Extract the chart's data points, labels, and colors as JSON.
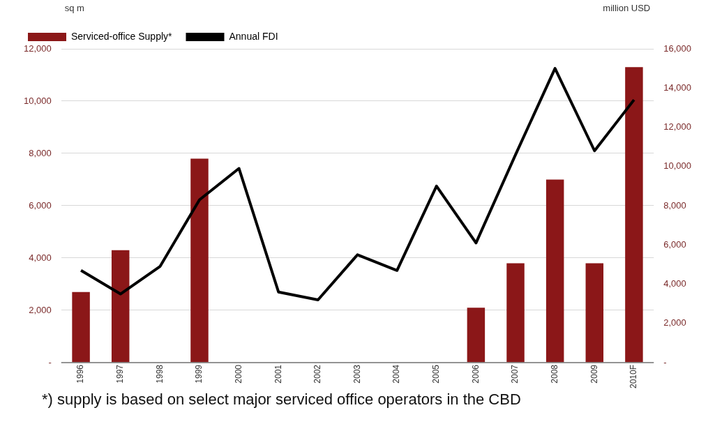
{
  "chart_data": {
    "type": "bar",
    "ylabel": "sq m",
    "y2label": "million USD",
    "categories": [
      "1996",
      "1997",
      "1998",
      "1999",
      "2000",
      "2001",
      "2002",
      "2003",
      "2004",
      "2005",
      "2006",
      "2007",
      "2008",
      "2009",
      "2010F"
    ],
    "series": [
      {
        "name": "Serviced-office Supply*",
        "color": "#8b1718",
        "values": [
          2700,
          4300,
          null,
          7800,
          null,
          null,
          null,
          null,
          null,
          null,
          2100,
          3800,
          7000,
          3800,
          11300
        ]
      },
      {
        "name": "Annual FDI",
        "type": "line",
        "axis": "y2",
        "color": "#000000",
        "values": [
          4700,
          3500,
          4900,
          8300,
          9900,
          3600,
          3200,
          5500,
          4700,
          9000,
          6100,
          10600,
          15000,
          10800,
          13400
        ]
      }
    ],
    "ylim": [
      0,
      12000
    ],
    "yticks": [
      {
        "value": 0,
        "label": "-"
      },
      {
        "value": 2000,
        "label": "2,000"
      },
      {
        "value": 4000,
        "label": "4,000"
      },
      {
        "value": 6000,
        "label": "6,000"
      },
      {
        "value": 8000,
        "label": "8,000"
      },
      {
        "value": 10000,
        "label": "10,000"
      },
      {
        "value": 12000,
        "label": "12,000"
      }
    ],
    "y2lim": [
      0,
      16000
    ],
    "y2ticks": [
      {
        "value": 0,
        "label": "-"
      },
      {
        "value": 2000,
        "label": "2,000"
      },
      {
        "value": 4000,
        "label": "4,000"
      },
      {
        "value": 6000,
        "label": "6,000"
      },
      {
        "value": 8000,
        "label": "8,000"
      },
      {
        "value": 10000,
        "label": "10,000"
      },
      {
        "value": 12000,
        "label": "12,000"
      },
      {
        "value": 14000,
        "label": "14,000"
      },
      {
        "value": 16000,
        "label": "16,000"
      }
    ],
    "grid": "y",
    "legend": "top left",
    "marker": "none",
    "annotations": [
      "*) supply is based on select major serviced office operators in the CBD"
    ]
  }
}
